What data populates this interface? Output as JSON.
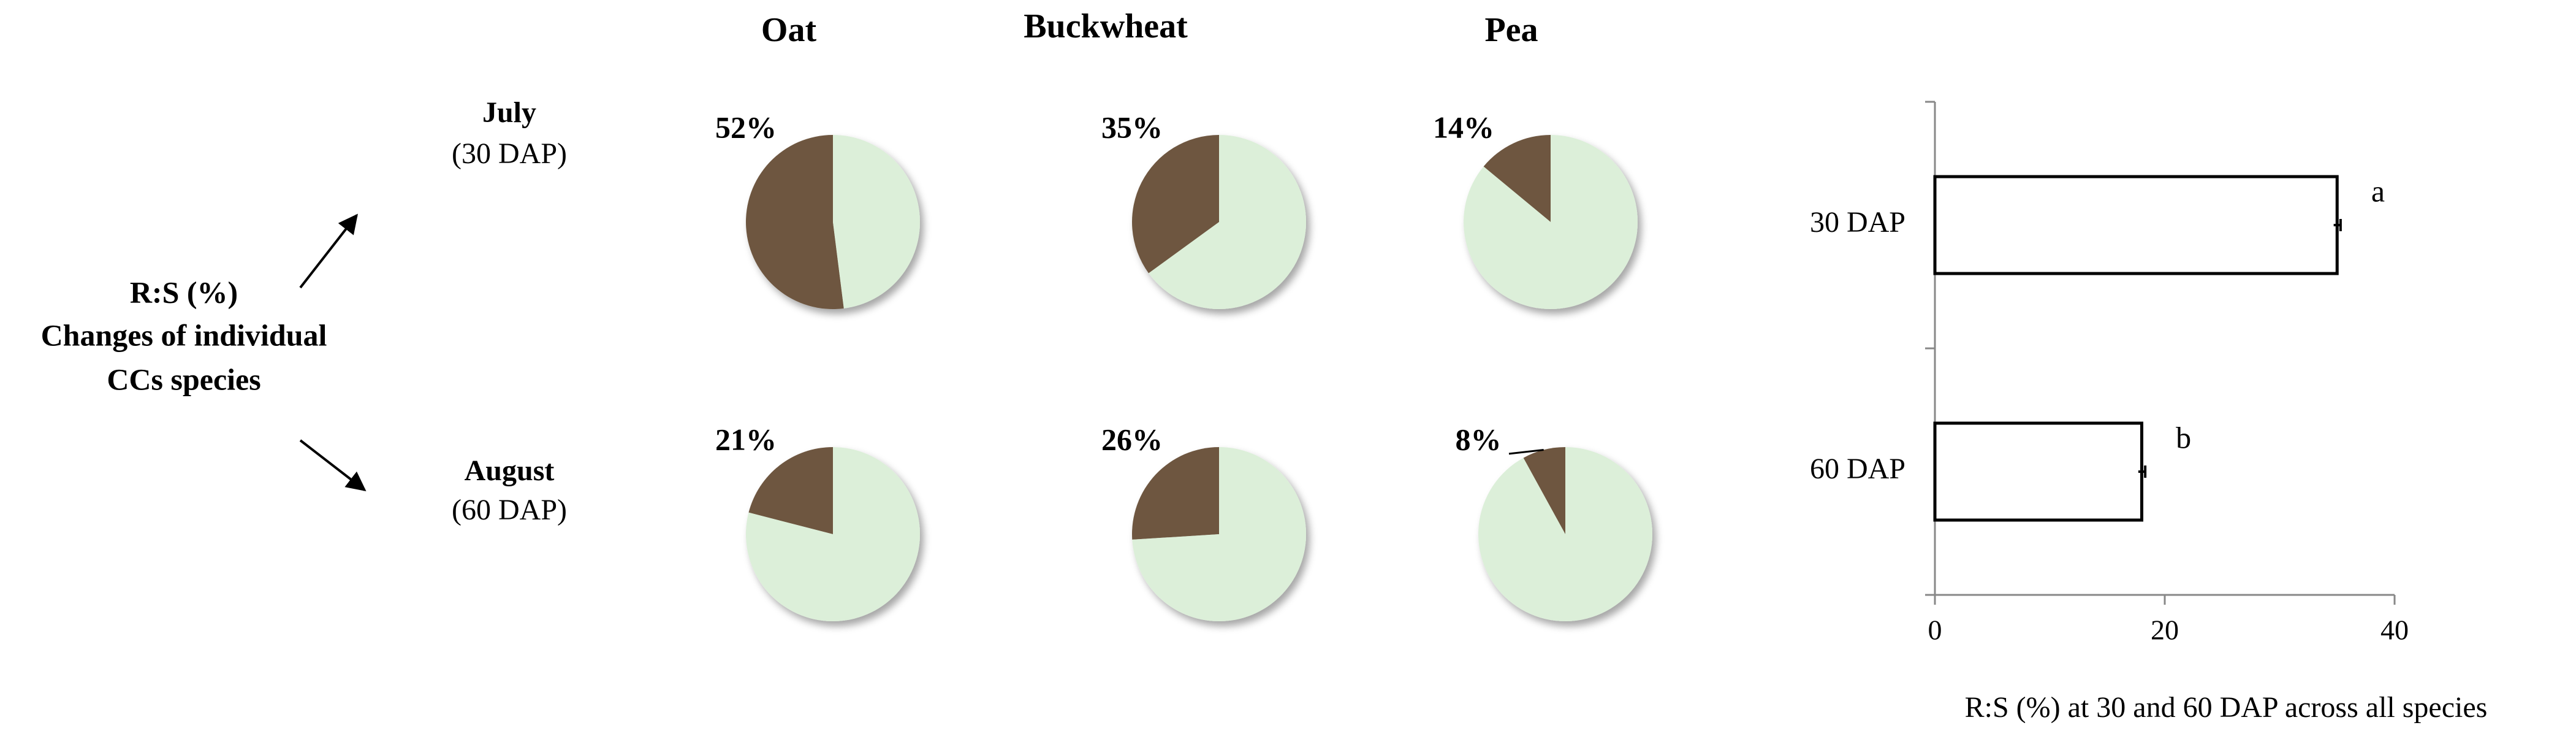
{
  "panel": {
    "title_lines": [
      "R:S (%)",
      "Changes of individual",
      "CCs species"
    ],
    "columns": [
      "Oat",
      "Buckwheat",
      "Pea"
    ],
    "rows": [
      {
        "month": "July",
        "dap": "(30 DAP)"
      },
      {
        "month": "August",
        "dap": "(60 DAP)"
      }
    ]
  },
  "chart_data": [
    {
      "type": "pie",
      "values": [
        52,
        48
      ],
      "value_labels": [
        "52%",
        null
      ],
      "colors": [
        "#6e573f",
        "#dcefd9"
      ]
    },
    {
      "type": "pie",
      "values": [
        35,
        65
      ],
      "value_labels": [
        "35%",
        null
      ],
      "colors": [
        "#6e573f",
        "#dcefd9"
      ]
    },
    {
      "type": "pie",
      "values": [
        14,
        86
      ],
      "value_labels": [
        "14%",
        null
      ],
      "colors": [
        "#6e573f",
        "#dcefd9"
      ]
    },
    {
      "type": "pie",
      "values": [
        21,
        79
      ],
      "value_labels": [
        "21%",
        null
      ],
      "colors": [
        "#6e573f",
        "#dcefd9"
      ]
    },
    {
      "type": "pie",
      "values": [
        26,
        74
      ],
      "value_labels": [
        "26%",
        null
      ],
      "colors": [
        "#6e573f",
        "#dcefd9"
      ]
    },
    {
      "type": "pie",
      "values": [
        8,
        92
      ],
      "value_labels": [
        "8%",
        null
      ],
      "colors": [
        "#6e573f",
        "#dcefd9"
      ]
    },
    {
      "type": "bar",
      "orientation": "horizontal",
      "categories": [
        "30  DAP",
        "60 DAP"
      ],
      "values": [
        35,
        18
      ],
      "errors": [
        0.3,
        0.3
      ],
      "annotations": [
        "a",
        "b"
      ],
      "color": "#ffffff",
      "xlim": [
        0,
        40
      ],
      "xticks": [
        0,
        20,
        40
      ],
      "xlabel": "R:S (%) at 30 and 60 DAP across all species"
    }
  ]
}
